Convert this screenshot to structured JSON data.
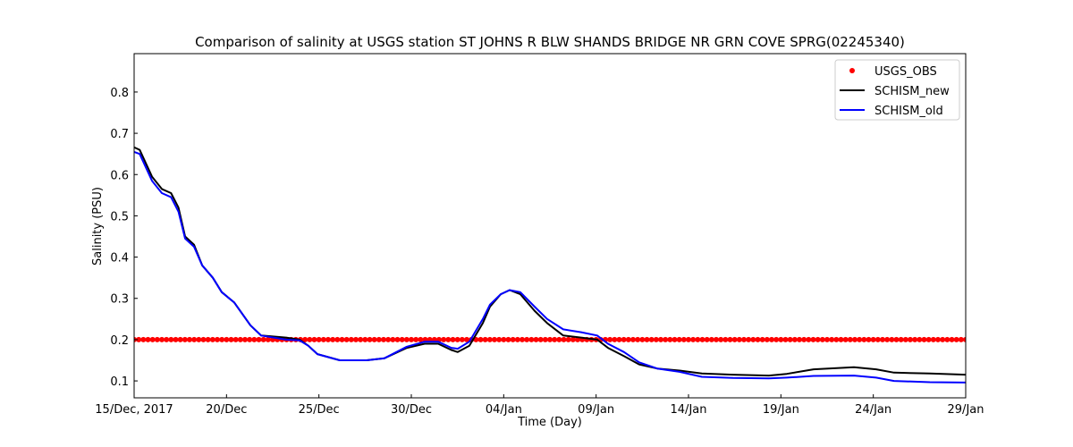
{
  "chart_data": {
    "type": "line",
    "title": "Comparison of salinity at USGS station ST JOHNS R BLW SHANDS BRIDGE NR GRN COVE SPRG(02245340)",
    "xlabel": "Time (Day)",
    "ylabel": "Salinity (PSU)",
    "xlim": [
      0,
      45
    ],
    "ylim": [
      0.059,
      0.893
    ],
    "x_unit": "days since 15/Dec/2017",
    "xticks": [
      0,
      5,
      10,
      15,
      20,
      25,
      30,
      35,
      40,
      45
    ],
    "xtick_labels": [
      "15/Dec, 2017",
      "20/Dec",
      "25/Dec",
      "30/Dec",
      "04/Jan",
      "09/Jan",
      "14/Jan",
      "19/Jan",
      "24/Jan",
      "29/Jan"
    ],
    "yticks": [
      0.1,
      0.2,
      0.3,
      0.4,
      0.5,
      0.6,
      0.7,
      0.8
    ],
    "ytick_labels": [
      "0.1",
      "0.2",
      "0.3",
      "0.4",
      "0.5",
      "0.6",
      "0.7",
      "0.8"
    ],
    "grid": false,
    "legend_position": "top-right",
    "series": [
      {
        "name": "USGS_OBS",
        "style": "markers",
        "color": "#ff0000",
        "x_start": 0,
        "x_end": 45,
        "step": 0.25,
        "value": 0.2
      },
      {
        "name": "SCHISM_new",
        "style": "line",
        "color": "#000000",
        "x": [
          0,
          0.3,
          0.97,
          1.5,
          2,
          2.4,
          2.76,
          3.24,
          3.68,
          4.26,
          4.74,
          5.42,
          6.29,
          6.87,
          8.22,
          8.95,
          9.43,
          9.92,
          11.13,
          12.58,
          13.55,
          14.76,
          15.72,
          16.45,
          17.17,
          17.51,
          18.14,
          18.87,
          19.26,
          19.84,
          20.32,
          20.9,
          21.67,
          22.35,
          23.22,
          24.19,
          25.06,
          25.64,
          26.51,
          27.33,
          28.3,
          29.51,
          30.72,
          32.41,
          34.35,
          35.32,
          36.77,
          38.95,
          40.15,
          41.12,
          43.06,
          45
        ],
        "y": [
          0.666,
          0.66,
          0.595,
          0.565,
          0.555,
          0.52,
          0.45,
          0.43,
          0.38,
          0.35,
          0.315,
          0.29,
          0.235,
          0.21,
          0.205,
          0.2,
          0.185,
          0.165,
          0.15,
          0.15,
          0.155,
          0.18,
          0.19,
          0.19,
          0.175,
          0.17,
          0.185,
          0.24,
          0.28,
          0.31,
          0.32,
          0.31,
          0.27,
          0.24,
          0.21,
          0.205,
          0.2,
          0.18,
          0.16,
          0.14,
          0.13,
          0.125,
          0.118,
          0.115,
          0.113,
          0.117,
          0.128,
          0.133,
          0.128,
          0.12,
          0.118,
          0.115
        ]
      },
      {
        "name": "SCHISM_old",
        "style": "line",
        "color": "#0000ff",
        "x": [
          0,
          0.3,
          0.97,
          1.5,
          2,
          2.4,
          2.76,
          3.24,
          3.68,
          4.26,
          4.74,
          5.42,
          6.29,
          6.87,
          8.22,
          8.95,
          9.43,
          9.92,
          11.13,
          12.58,
          13.55,
          14.76,
          15.72,
          16.45,
          17.17,
          17.51,
          18.14,
          18.87,
          19.26,
          19.84,
          20.32,
          20.9,
          21.67,
          22.35,
          23.22,
          24.19,
          25.06,
          25.64,
          26.51,
          27.33,
          28.3,
          29.51,
          30.72,
          32.41,
          34.35,
          35.32,
          36.77,
          38.95,
          40.15,
          41.12,
          43.06,
          45
        ],
        "y": [
          0.655,
          0.65,
          0.585,
          0.555,
          0.545,
          0.51,
          0.445,
          0.425,
          0.38,
          0.35,
          0.315,
          0.29,
          0.235,
          0.21,
          0.2,
          0.198,
          0.185,
          0.165,
          0.15,
          0.15,
          0.155,
          0.183,
          0.195,
          0.195,
          0.18,
          0.178,
          0.195,
          0.25,
          0.285,
          0.31,
          0.32,
          0.315,
          0.28,
          0.25,
          0.225,
          0.218,
          0.21,
          0.19,
          0.17,
          0.145,
          0.13,
          0.122,
          0.11,
          0.107,
          0.106,
          0.108,
          0.112,
          0.113,
          0.108,
          0.1,
          0.097,
          0.096
        ]
      }
    ]
  }
}
